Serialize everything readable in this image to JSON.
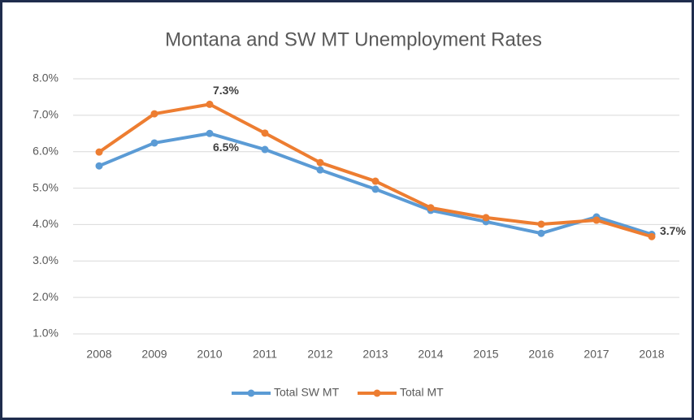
{
  "chart_data": {
    "type": "line",
    "title": "Montana and SW MT Unemployment Rates",
    "categories": [
      "2008",
      "2009",
      "2010",
      "2011",
      "2012",
      "2013",
      "2014",
      "2015",
      "2016",
      "2017",
      "2018"
    ],
    "series": [
      {
        "name": "Total SW MT",
        "color": "#5b9bd5",
        "values": [
          5.61,
          6.24,
          6.5,
          6.06,
          5.5,
          4.97,
          4.39,
          4.08,
          3.76,
          4.21,
          3.73
        ],
        "value_labels": [
          null,
          null,
          "6.5%",
          null,
          null,
          null,
          null,
          null,
          null,
          null,
          null
        ]
      },
      {
        "name": "Total MT",
        "color": "#ed7d31",
        "values": [
          5.99,
          7.04,
          7.3,
          6.51,
          5.7,
          5.19,
          4.46,
          4.19,
          4.01,
          4.12,
          3.67
        ],
        "value_labels": [
          null,
          null,
          "7.3%",
          null,
          null,
          null,
          null,
          null,
          null,
          null,
          "3.7%"
        ]
      }
    ],
    "ylim": [
      1,
      8
    ],
    "yticks": [
      {
        "value": 1,
        "label": "1.0%"
      },
      {
        "value": 2,
        "label": "2.0%"
      },
      {
        "value": 3,
        "label": "3.0%"
      },
      {
        "value": 4,
        "label": "4.0%"
      },
      {
        "value": 5,
        "label": "5.0%"
      },
      {
        "value": 6,
        "label": "6.0%"
      },
      {
        "value": 7,
        "label": "7.0%"
      },
      {
        "value": 8,
        "label": "8.0%"
      }
    ],
    "grid": true,
    "legend": "bottom"
  }
}
